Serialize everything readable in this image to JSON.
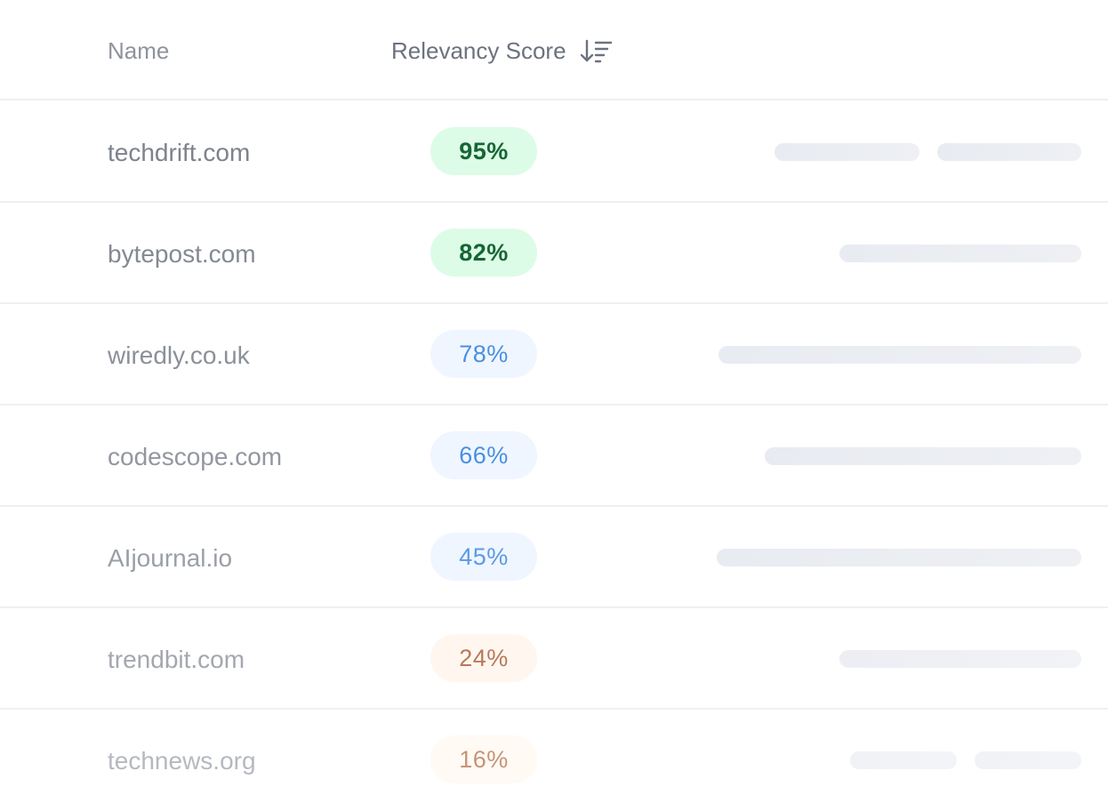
{
  "header": {
    "name_label": "Name",
    "score_label": "Relevancy Score",
    "sort_icon": "sort-descending-icon"
  },
  "rows": [
    {
      "name": "techdrift.com",
      "score": "95%",
      "tier": "high"
    },
    {
      "name": "bytepost.com",
      "score": "82%",
      "tier": "high"
    },
    {
      "name": "wiredly.co.uk",
      "score": "78%",
      "tier": "mid"
    },
    {
      "name": "codescope.com",
      "score": "66%",
      "tier": "mid"
    },
    {
      "name": "AIjournal.io",
      "score": "45%",
      "tier": "mid"
    },
    {
      "name": "trendbit.com",
      "score": "24%",
      "tier": "low"
    },
    {
      "name": "technews.org",
      "score": "16%",
      "tier": "low"
    }
  ],
  "colors": {
    "high_bg": "#dcfce7",
    "high_text": "#166534",
    "mid_bg": "#eff6ff",
    "mid_text": "#4a8fe0",
    "low_bg": "#fff7ef",
    "low_text": "#b9795b"
  }
}
